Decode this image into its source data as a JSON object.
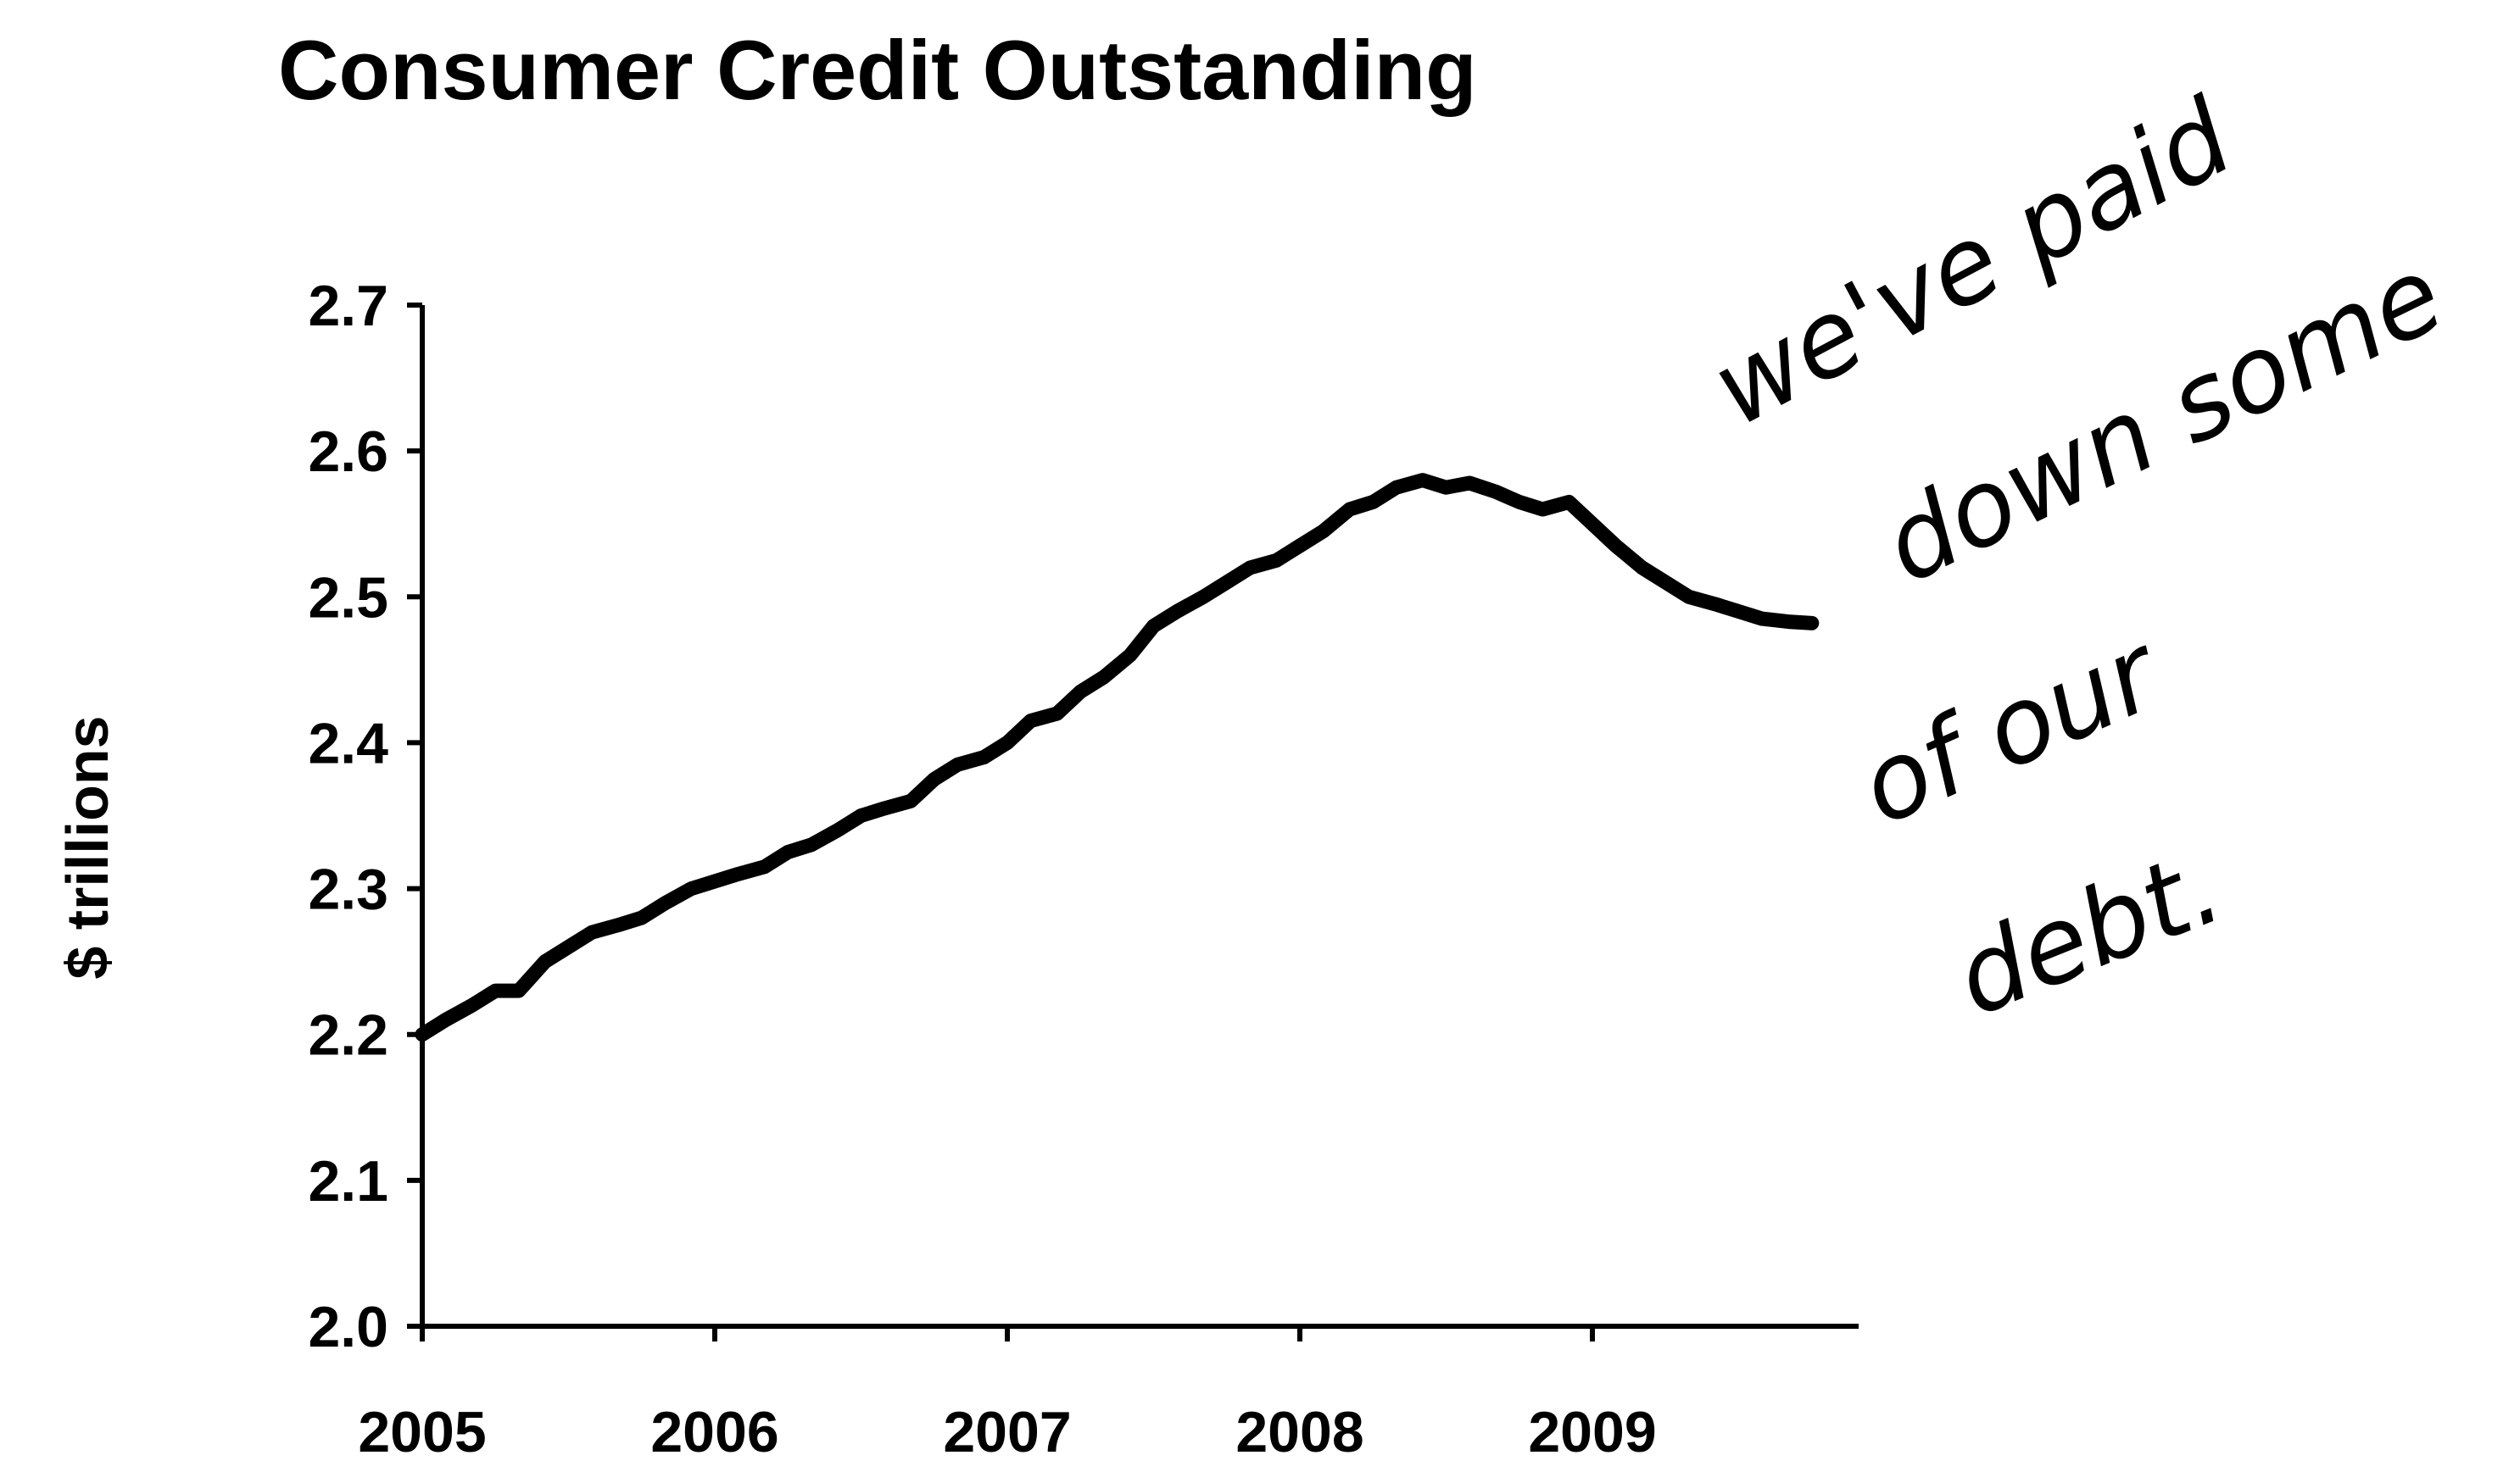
{
  "chart_data": {
    "type": "line",
    "title": "Consumer Credit Outstanding",
    "xlabel": "",
    "ylabel": "$ trillions",
    "xlim": [
      2005,
      2010
    ],
    "ylim": [
      2.0,
      2.7
    ],
    "x_tick_labels": [
      "2005",
      "2006",
      "2007",
      "2008",
      "2009"
    ],
    "y_tick_labels": [
      "2.0",
      "2.1",
      "2.2",
      "2.3",
      "2.4",
      "2.5",
      "2.6",
      "2.7"
    ],
    "grid": false,
    "legend": null,
    "series": [
      {
        "x": [
          2005.0,
          2005.08,
          2005.17,
          2005.25,
          2005.33,
          2005.42,
          2005.5,
          2005.58,
          2005.67,
          2005.75,
          2005.83,
          2005.92,
          2006.0,
          2006.08,
          2006.17,
          2006.25,
          2006.33,
          2006.42,
          2006.5,
          2006.58,
          2006.67,
          2006.75,
          2006.83,
          2006.92,
          2007.0,
          2007.08,
          2007.17,
          2007.25,
          2007.33,
          2007.42,
          2007.5,
          2007.58,
          2007.67,
          2007.75,
          2007.83,
          2007.92,
          2008.0,
          2008.08,
          2008.17,
          2008.25,
          2008.33,
          2008.42,
          2008.5,
          2008.58,
          2008.67,
          2008.75,
          2008.83,
          2008.92,
          2009.0,
          2009.08,
          2009.17,
          2009.25,
          2009.33,
          2009.42,
          2009.5,
          2009.58,
          2009.67,
          2009.75
        ],
        "values": [
          2.2,
          2.21,
          2.22,
          2.23,
          2.23,
          2.25,
          2.26,
          2.27,
          2.275,
          2.28,
          2.29,
          2.3,
          2.305,
          2.31,
          2.315,
          2.325,
          2.33,
          2.34,
          2.35,
          2.355,
          2.36,
          2.375,
          2.385,
          2.39,
          2.4,
          2.415,
          2.42,
          2.435,
          2.445,
          2.46,
          2.48,
          2.49,
          2.5,
          2.51,
          2.52,
          2.525,
          2.535,
          2.545,
          2.56,
          2.565,
          2.575,
          2.58,
          2.575,
          2.578,
          2.572,
          2.565,
          2.56,
          2.565,
          2.55,
          2.535,
          2.52,
          2.51,
          2.5,
          2.495,
          2.49,
          2.485,
          2.483,
          2.482
        ]
      }
    ],
    "annotation": {
      "lines": [
        "we've paid",
        "down some",
        "of our",
        "debt."
      ]
    }
  }
}
